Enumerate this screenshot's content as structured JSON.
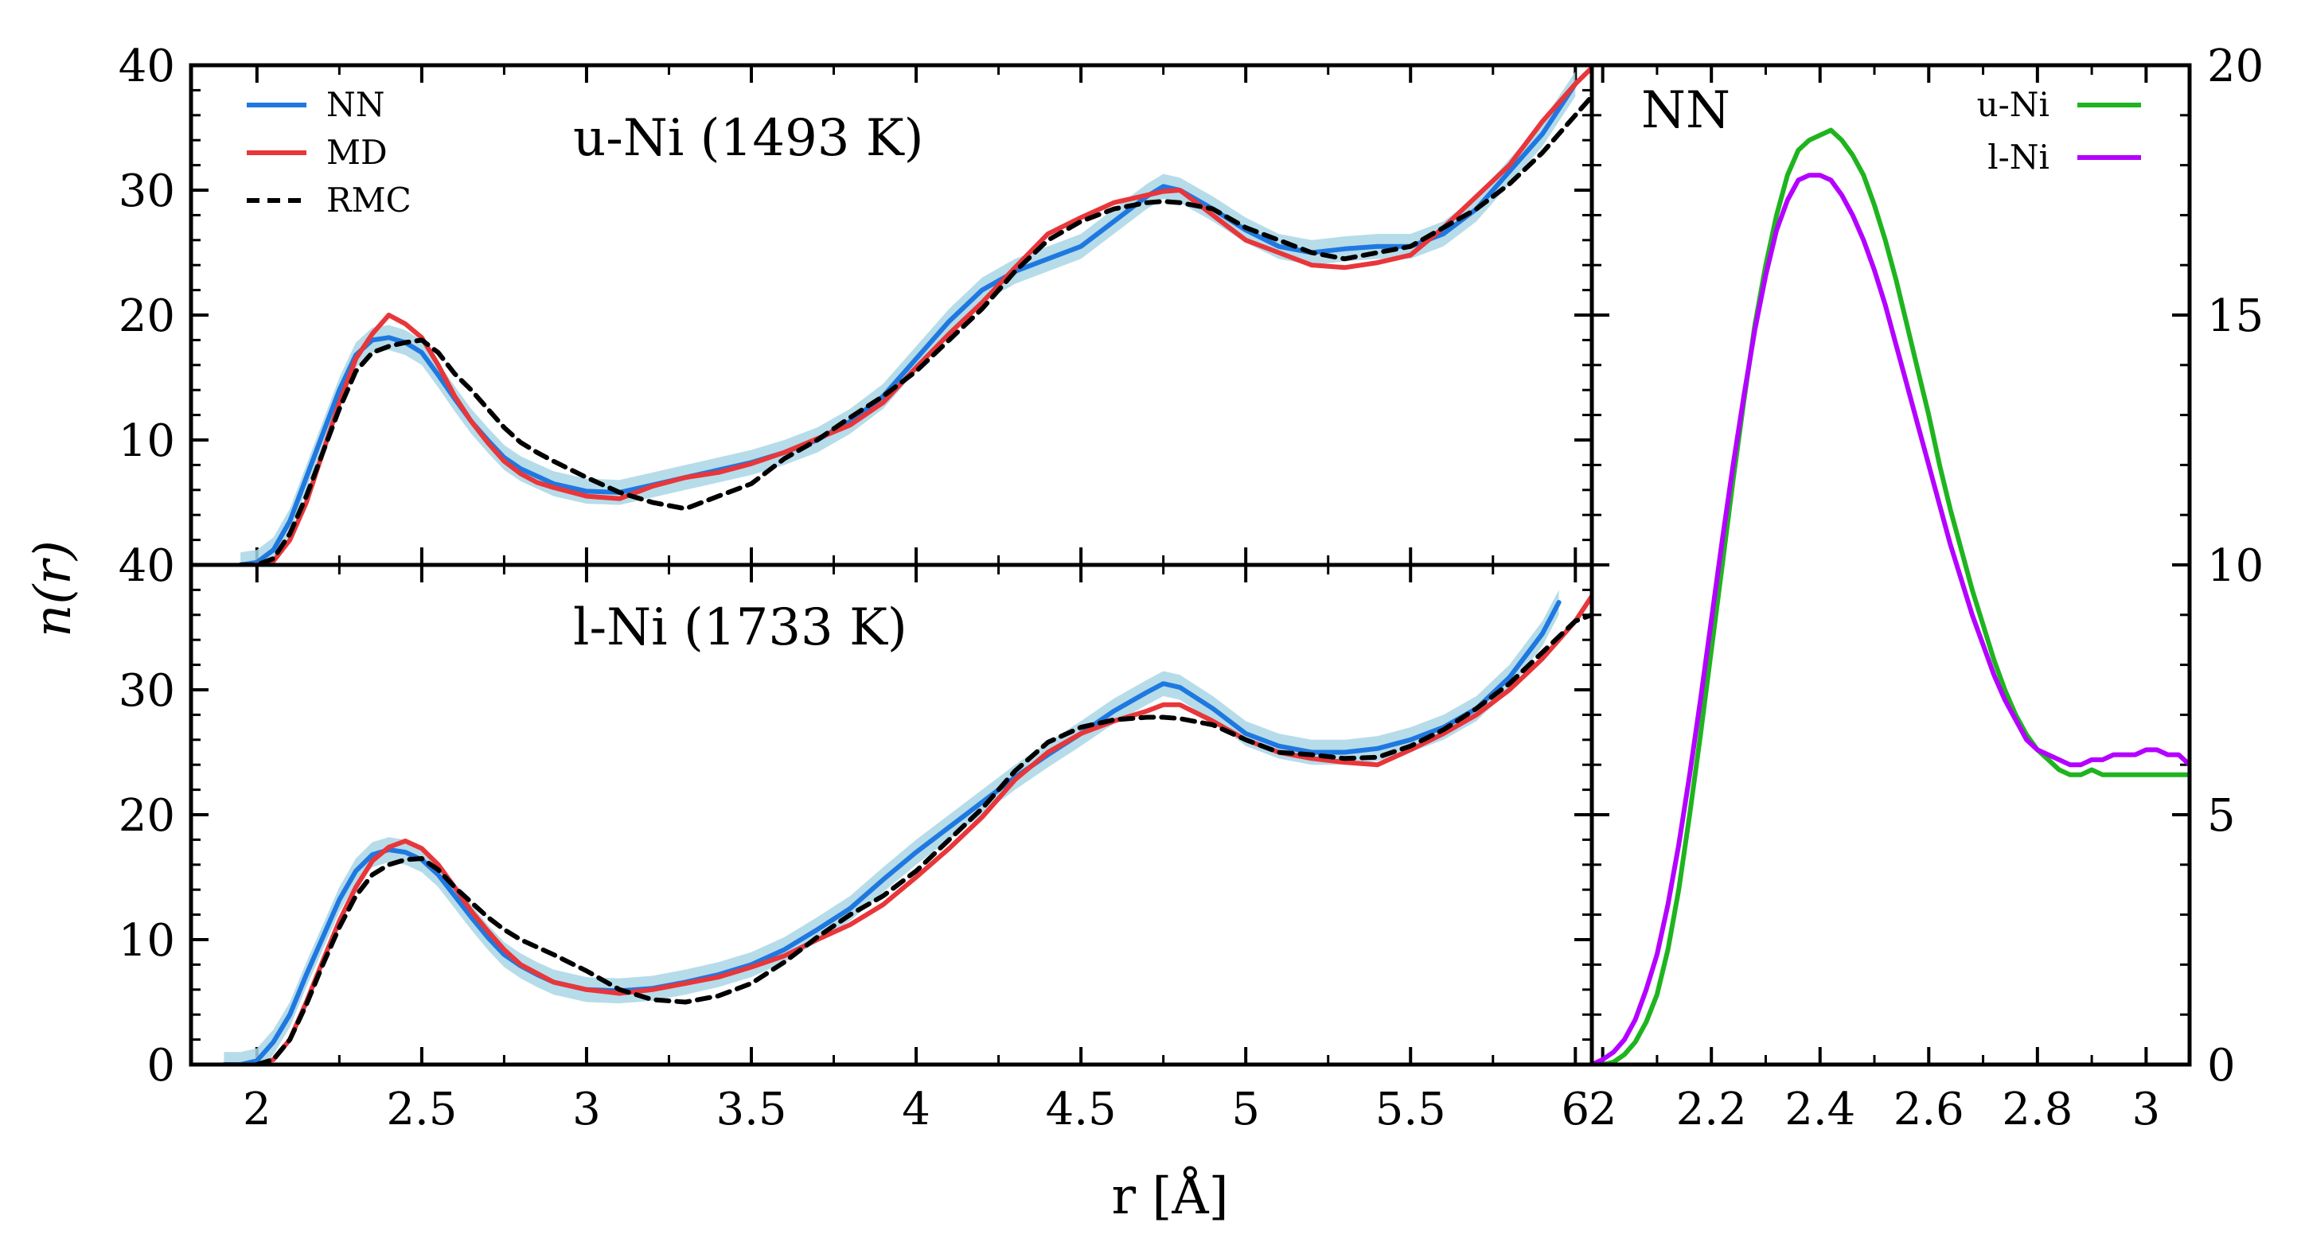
{
  "chart_data": [
    {
      "type": "line",
      "title": "u-Ni (1493 K)",
      "xlabel": "r [Å]",
      "ylabel": "n(r)",
      "xlim": [
        1.8,
        6.05
      ],
      "ylim": [
        0,
        40
      ],
      "x_ticks": [
        "2",
        "2.5",
        "3",
        "3.5",
        "4",
        "4.5",
        "5",
        "5.5",
        "6"
      ],
      "y_ticks": [
        "10",
        "20",
        "30",
        "40"
      ],
      "legend": {
        "position": "top-left"
      },
      "colors": {
        "NN": "#1f78e0",
        "NN_band": "#a9d6e5",
        "MD": "#e8363a",
        "RMC": "#000000"
      },
      "series": [
        {
          "name": "NN",
          "style": "solid",
          "x": [
            1.95,
            2.0,
            2.05,
            2.1,
            2.15,
            2.2,
            2.25,
            2.3,
            2.35,
            2.4,
            2.45,
            2.5,
            2.55,
            2.6,
            2.65,
            2.7,
            2.75,
            2.8,
            2.85,
            2.9,
            3.0,
            3.1,
            3.2,
            3.3,
            3.4,
            3.5,
            3.6,
            3.7,
            3.8,
            3.9,
            4.0,
            4.1,
            4.2,
            4.3,
            4.4,
            4.5,
            4.6,
            4.7,
            4.75,
            4.8,
            4.9,
            5.0,
            5.1,
            5.2,
            5.3,
            5.4,
            5.5,
            5.6,
            5.7,
            5.8,
            5.9,
            6.0
          ],
          "y": [
            0.0,
            0.2,
            1.2,
            3.5,
            7.0,
            10.5,
            14.0,
            16.8,
            18.0,
            18.2,
            17.8,
            17.0,
            15.2,
            13.3,
            11.5,
            10.0,
            8.6,
            7.7,
            7.1,
            6.5,
            5.9,
            5.8,
            6.4,
            7.0,
            7.6,
            8.2,
            9.0,
            10.0,
            11.5,
            13.5,
            16.5,
            19.5,
            22.0,
            23.5,
            24.5,
            25.5,
            27.5,
            29.5,
            30.3,
            30.0,
            28.5,
            26.8,
            25.5,
            25.0,
            25.3,
            25.5,
            25.5,
            26.5,
            28.5,
            31.5,
            34.5,
            38.5
          ],
          "band": 1.0
        },
        {
          "name": "MD",
          "style": "solid",
          "x": [
            1.95,
            2.0,
            2.05,
            2.1,
            2.15,
            2.2,
            2.25,
            2.3,
            2.35,
            2.4,
            2.45,
            2.5,
            2.55,
            2.6,
            2.65,
            2.7,
            2.75,
            2.8,
            2.85,
            2.9,
            3.0,
            3.1,
            3.2,
            3.3,
            3.4,
            3.5,
            3.6,
            3.7,
            3.8,
            3.9,
            4.0,
            4.1,
            4.2,
            4.3,
            4.4,
            4.5,
            4.6,
            4.7,
            4.75,
            4.8,
            4.9,
            5.0,
            5.1,
            5.2,
            5.3,
            5.4,
            5.5,
            5.6,
            5.7,
            5.8,
            5.9,
            6.0,
            6.05
          ],
          "y": [
            0.0,
            0.0,
            0.3,
            2.0,
            5.0,
            9.0,
            13.0,
            16.5,
            18.5,
            20.0,
            19.3,
            18.2,
            16.0,
            13.5,
            11.5,
            9.8,
            8.3,
            7.3,
            6.6,
            6.2,
            5.5,
            5.3,
            6.3,
            7.0,
            7.4,
            8.1,
            9.0,
            10.1,
            11.2,
            13.0,
            15.8,
            18.5,
            21.0,
            23.8,
            26.5,
            27.8,
            29.0,
            29.6,
            29.9,
            30.0,
            28.0,
            26.0,
            25.0,
            24.0,
            23.8,
            24.2,
            24.8,
            27.0,
            29.5,
            32.0,
            35.5,
            38.5,
            39.8
          ]
        },
        {
          "name": "RMC",
          "style": "dashed",
          "x": [
            1.95,
            2.0,
            2.05,
            2.1,
            2.15,
            2.2,
            2.25,
            2.3,
            2.35,
            2.4,
            2.45,
            2.5,
            2.55,
            2.6,
            2.65,
            2.7,
            2.75,
            2.8,
            2.85,
            2.9,
            3.0,
            3.1,
            3.2,
            3.3,
            3.4,
            3.5,
            3.6,
            3.7,
            3.8,
            3.9,
            4.0,
            4.1,
            4.2,
            4.3,
            4.4,
            4.5,
            4.6,
            4.7,
            4.75,
            4.8,
            4.9,
            5.0,
            5.1,
            5.2,
            5.3,
            5.4,
            5.5,
            5.6,
            5.7,
            5.8,
            5.9,
            6.0,
            6.05
          ],
          "y": [
            0.0,
            0.0,
            0.5,
            2.5,
            5.5,
            9.0,
            12.5,
            15.5,
            17.0,
            17.5,
            17.8,
            18.0,
            17.0,
            15.3,
            14.0,
            12.5,
            11.0,
            9.8,
            9.0,
            8.3,
            7.0,
            5.8,
            5.0,
            4.5,
            5.5,
            6.5,
            8.5,
            10.0,
            11.8,
            13.5,
            15.5,
            18.0,
            20.5,
            23.5,
            26.0,
            27.5,
            28.5,
            29.0,
            29.1,
            29.0,
            28.5,
            27.0,
            26.0,
            25.0,
            24.5,
            25.0,
            25.5,
            27.0,
            28.5,
            30.5,
            33.0,
            36.0,
            37.5
          ]
        }
      ]
    },
    {
      "type": "line",
      "title": "l-Ni (1733 K)",
      "xlabel": "r [Å]",
      "ylabel": "n(r)",
      "xlim": [
        1.8,
        6.05
      ],
      "ylim": [
        0,
        40
      ],
      "x_ticks": [
        "2",
        "2.5",
        "3",
        "3.5",
        "4",
        "4.5",
        "5",
        "5.5",
        "6"
      ],
      "y_ticks": [
        "0",
        "10",
        "20",
        "30",
        "40"
      ],
      "colors": {
        "NN": "#1f78e0",
        "NN_band": "#a9d6e5",
        "MD": "#e8363a",
        "RMC": "#000000"
      },
      "series": [
        {
          "name": "NN",
          "style": "solid",
          "x": [
            1.9,
            1.95,
            2.0,
            2.05,
            2.1,
            2.15,
            2.2,
            2.25,
            2.3,
            2.35,
            2.4,
            2.45,
            2.5,
            2.55,
            2.6,
            2.65,
            2.7,
            2.75,
            2.8,
            2.85,
            2.9,
            3.0,
            3.1,
            3.2,
            3.3,
            3.4,
            3.5,
            3.6,
            3.7,
            3.8,
            3.9,
            4.0,
            4.1,
            4.2,
            4.3,
            4.4,
            4.5,
            4.6,
            4.7,
            4.75,
            4.8,
            4.9,
            5.0,
            5.1,
            5.2,
            5.3,
            5.4,
            5.5,
            5.6,
            5.7,
            5.8,
            5.9,
            5.95
          ],
          "y": [
            0.0,
            0.0,
            0.3,
            1.8,
            4.0,
            7.2,
            10.2,
            13.2,
            15.5,
            16.8,
            17.2,
            17.0,
            16.4,
            15.2,
            13.5,
            11.8,
            10.2,
            8.8,
            7.9,
            7.2,
            6.6,
            6.0,
            5.9,
            6.1,
            6.6,
            7.2,
            8.0,
            9.2,
            10.8,
            12.5,
            14.8,
            17.0,
            19.0,
            21.0,
            23.0,
            24.8,
            26.5,
            28.3,
            29.8,
            30.5,
            30.2,
            28.5,
            26.5,
            25.5,
            25.0,
            25.0,
            25.3,
            26.0,
            27.0,
            28.5,
            31.0,
            34.5,
            37.0
          ],
          "band": 1.0
        },
        {
          "name": "MD",
          "style": "solid",
          "x": [
            2.0,
            2.05,
            2.1,
            2.15,
            2.2,
            2.25,
            2.3,
            2.35,
            2.4,
            2.45,
            2.5,
            2.55,
            2.6,
            2.65,
            2.7,
            2.75,
            2.8,
            2.85,
            2.9,
            3.0,
            3.1,
            3.2,
            3.3,
            3.4,
            3.5,
            3.6,
            3.7,
            3.8,
            3.9,
            4.0,
            4.1,
            4.2,
            4.3,
            4.4,
            4.5,
            4.6,
            4.7,
            4.75,
            4.8,
            4.9,
            5.0,
            5.1,
            5.2,
            5.3,
            5.4,
            5.5,
            5.6,
            5.7,
            5.8,
            5.9,
            6.0,
            6.05
          ],
          "y": [
            0.0,
            0.4,
            2.0,
            5.0,
            8.3,
            11.5,
            14.2,
            16.3,
            17.4,
            17.9,
            17.3,
            16.0,
            14.2,
            12.3,
            10.7,
            9.2,
            8.0,
            7.3,
            6.6,
            6.0,
            5.7,
            6.0,
            6.5,
            7.0,
            7.8,
            8.7,
            10.0,
            11.2,
            12.8,
            15.0,
            17.3,
            19.8,
            22.8,
            25.0,
            26.5,
            27.5,
            28.3,
            28.8,
            28.8,
            27.5,
            26.0,
            25.0,
            24.5,
            24.2,
            24.0,
            25.2,
            26.5,
            28.0,
            30.0,
            32.5,
            35.5,
            37.5
          ]
        },
        {
          "name": "RMC",
          "style": "dashed",
          "x": [
            2.0,
            2.05,
            2.1,
            2.15,
            2.2,
            2.25,
            2.3,
            2.35,
            2.4,
            2.45,
            2.5,
            2.55,
            2.6,
            2.65,
            2.7,
            2.75,
            2.8,
            2.85,
            2.9,
            3.0,
            3.1,
            3.2,
            3.3,
            3.4,
            3.5,
            3.6,
            3.7,
            3.8,
            3.9,
            4.0,
            4.1,
            4.2,
            4.3,
            4.4,
            4.5,
            4.6,
            4.7,
            4.75,
            4.8,
            4.9,
            5.0,
            5.1,
            5.2,
            5.3,
            5.4,
            5.5,
            5.6,
            5.7,
            5.8,
            5.9,
            6.0,
            6.05
          ],
          "y": [
            0.0,
            0.4,
            2.0,
            4.8,
            8.0,
            11.0,
            13.5,
            15.2,
            16.0,
            16.4,
            16.5,
            15.6,
            14.2,
            13.0,
            11.8,
            10.8,
            10.0,
            9.4,
            8.8,
            7.5,
            6.0,
            5.2,
            5.0,
            5.5,
            6.5,
            8.2,
            10.2,
            12.0,
            13.5,
            15.5,
            18.0,
            20.5,
            23.5,
            25.8,
            27.0,
            27.6,
            27.8,
            27.8,
            27.7,
            27.2,
            26.0,
            25.0,
            24.8,
            24.5,
            24.6,
            25.5,
            26.8,
            28.5,
            30.5,
            33.0,
            35.5,
            36.0
          ]
        }
      ]
    },
    {
      "type": "line",
      "title": "NN",
      "xlabel": "",
      "ylabel": "",
      "xlim": [
        1.98,
        3.08
      ],
      "ylim": [
        0,
        20
      ],
      "x_ticks": [
        "2",
        "2.2",
        "2.4",
        "2.6",
        "2.8",
        "3"
      ],
      "y_ticks": [
        "0",
        "5",
        "10",
        "15",
        "20"
      ],
      "legend": {
        "position": "top-right"
      },
      "colors": {
        "u-Ni": "#1fb41f",
        "l-Ni": "#b400ff"
      },
      "series": [
        {
          "name": "u-Ni",
          "style": "solid",
          "x": [
            1.98,
            2.0,
            2.02,
            2.04,
            2.06,
            2.08,
            2.1,
            2.12,
            2.14,
            2.16,
            2.18,
            2.2,
            2.22,
            2.24,
            2.26,
            2.28,
            2.3,
            2.32,
            2.34,
            2.36,
            2.38,
            2.4,
            2.42,
            2.44,
            2.46,
            2.48,
            2.5,
            2.52,
            2.54,
            2.56,
            2.58,
            2.6,
            2.62,
            2.64,
            2.66,
            2.68,
            2.7,
            2.72,
            2.74,
            2.76,
            2.78,
            2.8,
            2.82,
            2.84,
            2.86,
            2.88,
            2.9,
            2.92,
            2.94,
            2.96,
            2.98,
            3.0,
            3.02,
            3.04,
            3.06,
            3.08
          ],
          "y": [
            0.0,
            0.0,
            0.05,
            0.2,
            0.45,
            0.85,
            1.4,
            2.3,
            3.5,
            5.0,
            6.6,
            8.3,
            10.0,
            11.7,
            13.3,
            14.8,
            16.0,
            17.0,
            17.8,
            18.3,
            18.5,
            18.6,
            18.7,
            18.5,
            18.2,
            17.8,
            17.2,
            16.5,
            15.7,
            14.8,
            13.9,
            13.0,
            12.0,
            11.1,
            10.3,
            9.5,
            8.8,
            8.1,
            7.5,
            7.0,
            6.6,
            6.3,
            6.1,
            5.9,
            5.8,
            5.8,
            5.9,
            5.8,
            5.8,
            5.8,
            5.8,
            5.8,
            5.8,
            5.8,
            5.8,
            5.8
          ]
        },
        {
          "name": "l-Ni",
          "style": "solid",
          "x": [
            1.98,
            2.0,
            2.02,
            2.04,
            2.06,
            2.08,
            2.1,
            2.12,
            2.14,
            2.16,
            2.18,
            2.2,
            2.22,
            2.24,
            2.26,
            2.28,
            2.3,
            2.32,
            2.34,
            2.36,
            2.38,
            2.4,
            2.42,
            2.44,
            2.46,
            2.48,
            2.5,
            2.52,
            2.54,
            2.56,
            2.58,
            2.6,
            2.62,
            2.64,
            2.66,
            2.68,
            2.7,
            2.72,
            2.74,
            2.76,
            2.78,
            2.8,
            2.82,
            2.84,
            2.86,
            2.88,
            2.9,
            2.92,
            2.94,
            2.96,
            2.98,
            3.0,
            3.02,
            3.04,
            3.06,
            3.08
          ],
          "y": [
            0.0,
            0.1,
            0.25,
            0.5,
            0.9,
            1.5,
            2.2,
            3.2,
            4.4,
            5.8,
            7.3,
            8.9,
            10.5,
            12.0,
            13.4,
            14.7,
            15.8,
            16.7,
            17.3,
            17.7,
            17.8,
            17.8,
            17.7,
            17.4,
            17.0,
            16.5,
            15.9,
            15.2,
            14.4,
            13.6,
            12.8,
            12.0,
            11.2,
            10.4,
            9.7,
            9.0,
            8.4,
            7.8,
            7.3,
            6.9,
            6.5,
            6.3,
            6.2,
            6.1,
            6.0,
            6.0,
            6.1,
            6.1,
            6.2,
            6.2,
            6.2,
            6.3,
            6.3,
            6.2,
            6.2,
            6.0
          ]
        }
      ]
    }
  ]
}
